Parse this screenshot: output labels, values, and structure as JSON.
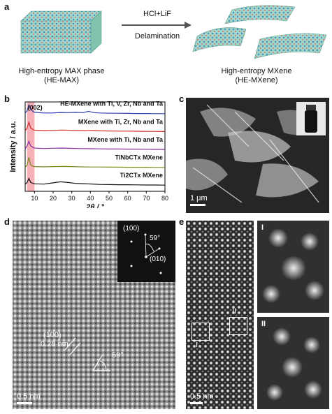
{
  "panel_a": {
    "letter": "a",
    "arrow_top": "HCl+LiF",
    "arrow_bottom": "Delamination",
    "left_line1": "High-entropy MAX phase",
    "left_line2": "(HE-MAX)",
    "right_line1": "High-entropy MXene",
    "right_line2": "(HE-MXene)"
  },
  "panel_b": {
    "letter": "b",
    "peak_label": "(002)"
  },
  "panel_c": {
    "letter": "c",
    "scale": "1 μm"
  },
  "panel_d": {
    "letter": "d",
    "scale": "0.5 nm",
    "lattice_plane": "(100)",
    "lattice_spacing": "0.28 nm",
    "angle": "59°",
    "fft_100": "(100)",
    "fft_010": "(010)",
    "fft_angle": "59°"
  },
  "panel_e": {
    "letter": "e",
    "scale": "0.5 nm",
    "box1": "I",
    "box2": "II",
    "inset1": "I",
    "inset2": "II"
  },
  "chart_data": {
    "type": "line",
    "xlabel": "2θ / °",
    "ylabel": "Intensity / a.u.",
    "xlim": [
      5,
      80
    ],
    "xticks": [
      10,
      20,
      30,
      40,
      50,
      60,
      70,
      80
    ],
    "highlight_range": [
      6,
      10
    ],
    "series": [
      {
        "name": "HE-MXene with Ti, V, Zr, Nb and Ta",
        "color": "#2b3ea8",
        "x": [
          5,
          6,
          7,
          8,
          10,
          15,
          20,
          24,
          28,
          32,
          36,
          39,
          42,
          45,
          50,
          55,
          60,
          65,
          70,
          75,
          80
        ],
        "y": [
          0.3,
          0.45,
          0.9,
          0.55,
          0.35,
          0.3,
          0.3,
          0.34,
          0.33,
          0.35,
          0.33,
          0.42,
          0.33,
          0.3,
          0.28,
          0.28,
          0.27,
          0.26,
          0.26,
          0.25,
          0.25
        ]
      },
      {
        "name": "MXene with Ti, Zr, Nb and Ta",
        "color": "#d42a2a",
        "x": [
          5,
          6,
          7,
          8,
          10,
          15,
          20,
          25,
          30,
          35,
          40,
          45,
          50,
          55,
          60,
          65,
          70,
          75,
          80
        ],
        "y": [
          0.3,
          0.5,
          0.95,
          0.5,
          0.35,
          0.32,
          0.34,
          0.36,
          0.34,
          0.32,
          0.33,
          0.3,
          0.29,
          0.28,
          0.28,
          0.27,
          0.26,
          0.26,
          0.25
        ]
      },
      {
        "name": "MXene with Ti, Nb and Ta",
        "color": "#8a2aa0",
        "x": [
          5,
          6,
          7,
          8,
          10,
          15,
          20,
          25,
          30,
          35,
          40,
          45,
          50,
          55,
          60,
          65,
          70,
          75,
          80
        ],
        "y": [
          0.3,
          0.5,
          0.85,
          0.5,
          0.35,
          0.32,
          0.34,
          0.35,
          0.33,
          0.31,
          0.3,
          0.29,
          0.28,
          0.28,
          0.27,
          0.27,
          0.26,
          0.25,
          0.25
        ]
      },
      {
        "name": "TiNbCTx MXene",
        "color": "#7a8a1a",
        "x": [
          5,
          6,
          7,
          7.5,
          8,
          10,
          15,
          20,
          25,
          30,
          35,
          40,
          45,
          50,
          55,
          60,
          65,
          70,
          75,
          80
        ],
        "y": [
          0.25,
          0.4,
          1.0,
          0.7,
          0.4,
          0.3,
          0.28,
          0.3,
          0.31,
          0.3,
          0.28,
          0.27,
          0.27,
          0.26,
          0.26,
          0.25,
          0.25,
          0.25,
          0.24,
          0.24
        ]
      },
      {
        "name": "Ti2CTx MXene",
        "color": "#111111",
        "x": [
          5,
          6,
          7,
          8,
          10,
          15,
          20,
          24,
          28,
          32,
          36,
          40,
          45,
          50,
          55,
          60,
          65,
          70,
          75,
          80
        ],
        "y": [
          0.3,
          0.45,
          0.75,
          0.45,
          0.35,
          0.33,
          0.42,
          0.5,
          0.45,
          0.38,
          0.36,
          0.34,
          0.3,
          0.29,
          0.28,
          0.28,
          0.27,
          0.26,
          0.26,
          0.25
        ]
      }
    ]
  }
}
